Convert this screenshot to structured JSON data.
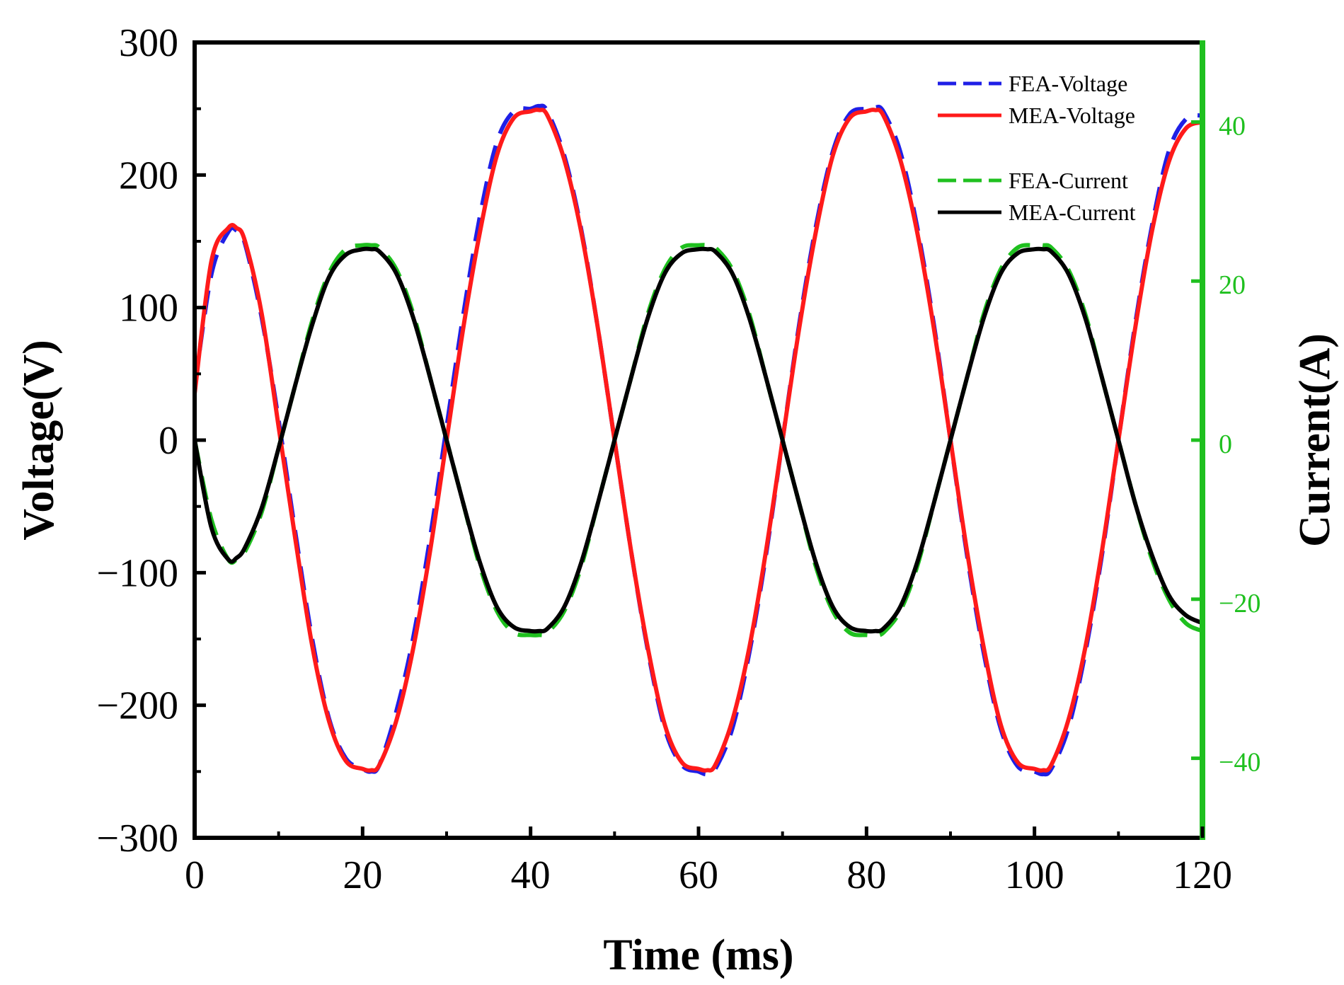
{
  "chart_data": {
    "type": "line",
    "xlabel": "Time (ms)",
    "ylabel": "Voltage(V)",
    "y2label": "Current(A)",
    "xlim": [
      0,
      120
    ],
    "ylim": [
      -300,
      300
    ],
    "y2lim": [
      -50,
      50
    ],
    "xticks": [
      0,
      20,
      40,
      60,
      80,
      100,
      120
    ],
    "yticks": [
      -300,
      -200,
      -100,
      0,
      100,
      200,
      300
    ],
    "y2ticks": [
      -40,
      -20,
      0,
      20,
      40
    ],
    "xtick_labels": [
      "0",
      "20",
      "40",
      "60",
      "80",
      "100",
      "120"
    ],
    "ytick_labels": [
      "−300",
      "−200",
      "−100",
      "0",
      "100",
      "200",
      "300"
    ],
    "y2tick_labels": [
      "−40",
      "−20",
      "0",
      "20",
      "40"
    ],
    "grid": false,
    "legend_position": "top-right",
    "colors": {
      "fea_voltage": "#1f1fe6",
      "mea_voltage": "#ff1a1a",
      "fea_current": "#1fc01f",
      "mea_current": "#000000",
      "right_axis": "#1fc01f"
    },
    "x": [
      0,
      2,
      4,
      5,
      6,
      8,
      10,
      12,
      14,
      16,
      18,
      20,
      21,
      22,
      24,
      26,
      28,
      30,
      32,
      34,
      36,
      38,
      40,
      41,
      42,
      44,
      46,
      48,
      50,
      52,
      54,
      56,
      58,
      60,
      61,
      62,
      64,
      66,
      68,
      70,
      72,
      74,
      76,
      78,
      80,
      81,
      82,
      84,
      86,
      88,
      90,
      92,
      94,
      96,
      98,
      100,
      101,
      102,
      104,
      106,
      108,
      110,
      112,
      114,
      116,
      118,
      120
    ],
    "series": [
      {
        "name": "FEA-Voltage",
        "axis": "left",
        "style": "dashed",
        "values": [
          40,
          125,
          157,
          158,
          148,
          92,
          15,
          -70,
          -150,
          -210,
          -240,
          -248,
          -250,
          -245,
          -205,
          -150,
          -75,
          10,
          95,
          170,
          225,
          248,
          250,
          252,
          248,
          215,
          160,
          85,
          0,
          -85,
          -160,
          -218,
          -245,
          -250,
          -252,
          -248,
          -218,
          -162,
          -88,
          0,
          88,
          162,
          218,
          246,
          250,
          251,
          248,
          218,
          162,
          88,
          0,
          -88,
          -162,
          -218,
          -246,
          -250,
          -252,
          -248,
          -218,
          -162,
          -88,
          0,
          88,
          162,
          218,
          242,
          245
        ]
      },
      {
        "name": "MEA-Voltage",
        "axis": "left",
        "style": "solid",
        "values": [
          35,
          135,
          160,
          160,
          150,
          95,
          10,
          -75,
          -155,
          -212,
          -242,
          -248,
          -249,
          -245,
          -212,
          -158,
          -85,
          0,
          85,
          158,
          215,
          243,
          248,
          249,
          245,
          212,
          158,
          85,
          0,
          -85,
          -158,
          -215,
          -243,
          -248,
          -249,
          -245,
          -212,
          -158,
          -85,
          0,
          85,
          158,
          215,
          243,
          248,
          249,
          245,
          212,
          158,
          85,
          0,
          -85,
          -158,
          -215,
          -243,
          -248,
          -249,
          -245,
          -212,
          -158,
          -85,
          0,
          85,
          158,
          210,
          235,
          240
        ]
      },
      {
        "name": "FEA-Current",
        "axis": "right",
        "style": "dashed",
        "values": [
          0,
          -10,
          -15,
          -15,
          -14,
          -9,
          -1,
          7,
          15,
          21,
          24,
          24.5,
          24.5,
          24.2,
          21.5,
          16,
          8,
          0,
          -8,
          -16,
          -21.5,
          -24.2,
          -24.5,
          -24.5,
          -24.2,
          -21.5,
          -16,
          -8,
          0,
          8,
          16,
          21.5,
          24.2,
          24.5,
          24.5,
          24.2,
          21.5,
          16,
          8,
          0,
          -8,
          -16,
          -21.5,
          -24.2,
          -24.5,
          -24.5,
          -24.2,
          -21.5,
          -16,
          -8,
          0,
          8,
          16,
          21.5,
          24.2,
          24.5,
          24.5,
          24.2,
          21.5,
          16,
          8,
          0,
          -8,
          -15,
          -20,
          -23,
          -24
        ]
      },
      {
        "name": "MEA-Current",
        "axis": "right",
        "style": "solid",
        "values": [
          0,
          -11,
          -15,
          -14.8,
          -13.5,
          -8.5,
          -1,
          7,
          14.5,
          20.5,
          23.3,
          24,
          24,
          23.7,
          21,
          15.5,
          8,
          0,
          -8,
          -15.5,
          -21,
          -23.5,
          -24,
          -24,
          -23.7,
          -21,
          -15.5,
          -8,
          0,
          8,
          15.5,
          21,
          23.5,
          24,
          24,
          23.7,
          21,
          15.5,
          8,
          0,
          -8,
          -15.5,
          -21,
          -23.5,
          -24,
          -24,
          -23.7,
          -21,
          -15.5,
          -8,
          0,
          8,
          15.5,
          21,
          23.5,
          24,
          24,
          23.7,
          21,
          15.5,
          8,
          0,
          -8,
          -14.5,
          -19.5,
          -22,
          -23
        ]
      }
    ]
  }
}
